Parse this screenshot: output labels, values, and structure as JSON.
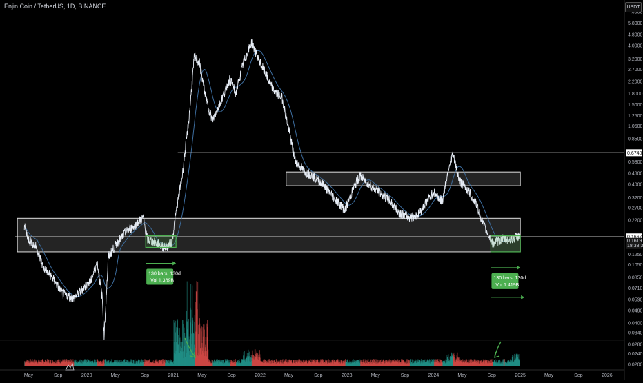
{
  "header": {
    "title": "Enjin Coin / TetherUS, 1D, BINANCE",
    "currency_button": "USDT"
  },
  "chart_data": {
    "type": "line",
    "title": "Enjin Coin / TetherUS, 1D, BINANCE",
    "y_scale": "log",
    "ylim": [
      0.0196,
      7.6
    ],
    "y_ticks": [
      {
        "v": 7.0,
        "label": "7.0000"
      },
      {
        "v": 5.8,
        "label": "5.8000"
      },
      {
        "v": 4.8,
        "label": "4.8000"
      },
      {
        "v": 4.0,
        "label": "4.0000"
      },
      {
        "v": 3.2,
        "label": "3.2000"
      },
      {
        "v": 2.7,
        "label": "2.7000"
      },
      {
        "v": 2.2,
        "label": "2.2000"
      },
      {
        "v": 1.8,
        "label": "1.8000"
      },
      {
        "v": 1.5,
        "label": "1.5000"
      },
      {
        "v": 1.25,
        "label": "1.2500"
      },
      {
        "v": 1.05,
        "label": "1.0500"
      },
      {
        "v": 0.85,
        "label": "0.8500"
      },
      {
        "v": 0.58,
        "label": "0.5800"
      },
      {
        "v": 0.48,
        "label": "0.4800"
      },
      {
        "v": 0.4,
        "label": "0.4000"
      },
      {
        "v": 0.32,
        "label": "0.3200"
      },
      {
        "v": 0.27,
        "label": "0.2700"
      },
      {
        "v": 0.22,
        "label": "0.2200"
      },
      {
        "v": 0.125,
        "label": "0.1250"
      },
      {
        "v": 0.105,
        "label": "0.1050"
      },
      {
        "v": 0.085,
        "label": "0.0850"
      },
      {
        "v": 0.071,
        "label": "0.0710"
      },
      {
        "v": 0.059,
        "label": "0.0590"
      },
      {
        "v": 0.049,
        "label": "0.0490"
      },
      {
        "v": 0.04,
        "label": "0.0400"
      },
      {
        "v": 0.034,
        "label": "0.0340"
      },
      {
        "v": 0.028,
        "label": "0.0280"
      },
      {
        "v": 0.024,
        "label": "0.0240"
      },
      {
        "v": 0.02,
        "label": "0.0200"
      }
    ],
    "x_ticks": [
      {
        "t": 2019.33,
        "label": "May"
      },
      {
        "t": 2019.67,
        "label": "Sep"
      },
      {
        "t": 2020.0,
        "label": "2020"
      },
      {
        "t": 2020.33,
        "label": "May"
      },
      {
        "t": 2020.67,
        "label": "Sep"
      },
      {
        "t": 2021.0,
        "label": "2021"
      },
      {
        "t": 2021.33,
        "label": "May"
      },
      {
        "t": 2021.67,
        "label": "Sep"
      },
      {
        "t": 2022.0,
        "label": "2022"
      },
      {
        "t": 2022.33,
        "label": "May"
      },
      {
        "t": 2022.67,
        "label": "Sep"
      },
      {
        "t": 2023.0,
        "label": "2023"
      },
      {
        "t": 2023.33,
        "label": "May"
      },
      {
        "t": 2023.67,
        "label": "Sep"
      },
      {
        "t": 2024.0,
        "label": "2024"
      },
      {
        "t": 2024.33,
        "label": "May"
      },
      {
        "t": 2024.67,
        "label": "Sep"
      },
      {
        "t": 2025.0,
        "label": "2025"
      },
      {
        "t": 2025.33,
        "label": "May"
      },
      {
        "t": 2025.67,
        "label": "Sep"
      },
      {
        "t": 2026.0,
        "label": "2026"
      }
    ],
    "xlim": [
      2019.0,
      2026.2
    ],
    "price_path": [
      [
        2019.28,
        0.2
      ],
      [
        2019.33,
        0.16
      ],
      [
        2019.42,
        0.14
      ],
      [
        2019.5,
        0.1
      ],
      [
        2019.6,
        0.085
      ],
      [
        2019.72,
        0.065
      ],
      [
        2019.85,
        0.06
      ],
      [
        2019.95,
        0.07
      ],
      [
        2020.05,
        0.08
      ],
      [
        2020.12,
        0.11
      ],
      [
        2020.18,
        0.06
      ],
      [
        2020.2,
        0.032
      ],
      [
        2020.25,
        0.12
      ],
      [
        2020.35,
        0.15
      ],
      [
        2020.45,
        0.18
      ],
      [
        2020.55,
        0.2
      ],
      [
        2020.65,
        0.23
      ],
      [
        2020.7,
        0.16
      ],
      [
        2020.8,
        0.15
      ],
      [
        2020.9,
        0.14
      ],
      [
        2020.98,
        0.15
      ],
      [
        2021.05,
        0.3
      ],
      [
        2021.1,
        0.45
      ],
      [
        2021.18,
        1.2
      ],
      [
        2021.24,
        3.3
      ],
      [
        2021.3,
        3.0
      ],
      [
        2021.38,
        1.6
      ],
      [
        2021.45,
        1.15
      ],
      [
        2021.55,
        1.6
      ],
      [
        2021.65,
        2.3
      ],
      [
        2021.72,
        1.8
      ],
      [
        2021.8,
        2.9
      ],
      [
        2021.9,
        4.2
      ],
      [
        2021.98,
        3.2
      ],
      [
        2022.05,
        2.6
      ],
      [
        2022.15,
        1.9
      ],
      [
        2022.25,
        1.7
      ],
      [
        2022.33,
        1.0
      ],
      [
        2022.4,
        0.6
      ],
      [
        2022.5,
        0.5
      ],
      [
        2022.6,
        0.46
      ],
      [
        2022.72,
        0.4
      ],
      [
        2022.85,
        0.32
      ],
      [
        2022.98,
        0.26
      ],
      [
        2023.08,
        0.38
      ],
      [
        2023.15,
        0.46
      ],
      [
        2023.25,
        0.4
      ],
      [
        2023.35,
        0.36
      ],
      [
        2023.5,
        0.3
      ],
      [
        2023.6,
        0.25
      ],
      [
        2023.72,
        0.23
      ],
      [
        2023.82,
        0.24
      ],
      [
        2023.92,
        0.3
      ],
      [
        2024.0,
        0.35
      ],
      [
        2024.1,
        0.3
      ],
      [
        2024.18,
        0.55
      ],
      [
        2024.22,
        0.66
      ],
      [
        2024.3,
        0.42
      ],
      [
        2024.4,
        0.36
      ],
      [
        2024.5,
        0.28
      ],
      [
        2024.58,
        0.2
      ],
      [
        2024.68,
        0.15
      ],
      [
        2024.8,
        0.16
      ],
      [
        2024.9,
        0.16
      ],
      [
        2024.99,
        0.17
      ]
    ],
    "annotations": {
      "horizontal_lines": [
        {
          "price": 0.6743,
          "label": "0.6743"
        },
        {
          "price": 0.1667,
          "label": "0.1667"
        }
      ],
      "zones": [
        {
          "t0": 2019.2,
          "t1": 2025.0,
          "p_low": 0.13,
          "p_high": 0.227
        },
        {
          "t0": 2022.3,
          "t1": 2025.0,
          "p_low": 0.39,
          "p_high": 0.49
        }
      ],
      "range_boxes": [
        {
          "t0": 2020.68,
          "t1": 2021.03,
          "p_low": 0.14,
          "p_high": 0.17,
          "label1": "130 bars, 130d",
          "label2": "Vol 1.369B"
        },
        {
          "t0": 2024.66,
          "t1": 2025.0,
          "p_low": 0.13,
          "p_high": 0.17,
          "label1": "130 bars, 130d",
          "label2": "Vol 1.419B"
        }
      ]
    },
    "last_price_label": "0.1619",
    "countdown_label": "18:38:39",
    "grid": false
  }
}
